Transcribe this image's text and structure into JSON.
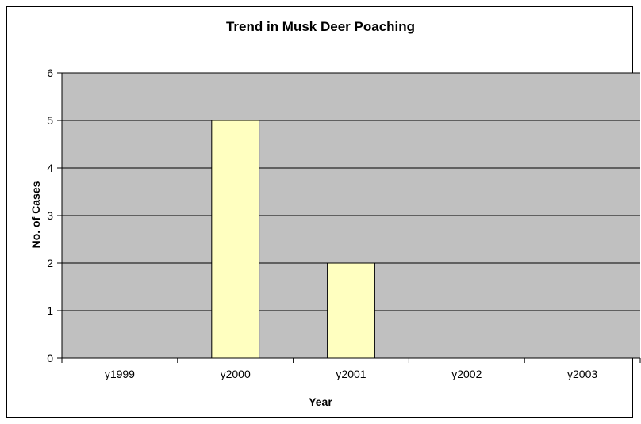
{
  "chart_data": {
    "type": "bar",
    "title": "Trend in Musk Deer Poaching",
    "xlabel": "Year",
    "ylabel": "No. of Cases",
    "categories": [
      "y1999",
      "y2000",
      "y2001",
      "y2002",
      "y2003"
    ],
    "values": [
      0,
      5,
      2,
      0,
      0
    ],
    "ylim": [
      0,
      6
    ],
    "yticks": [
      0,
      1,
      2,
      3,
      4,
      5,
      6
    ],
    "grid": true,
    "legend": "none",
    "colors": {
      "plot_background": "#c0c0c0",
      "bar_fill": "#ffffc0",
      "bar_stroke": "#000000",
      "gridline": "#000000"
    }
  }
}
